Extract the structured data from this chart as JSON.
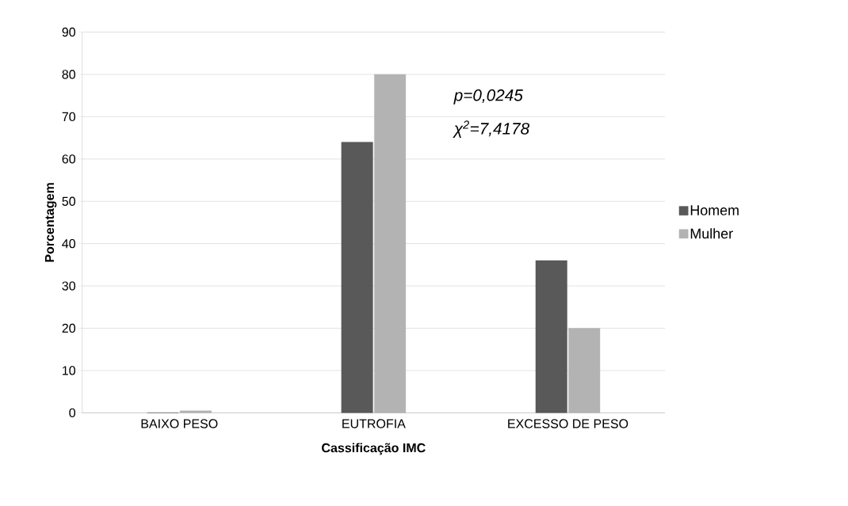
{
  "chart_data": {
    "type": "bar",
    "categories": [
      "BAIXO PESO",
      "EUTROFIA",
      "EXCESSO DE PESO"
    ],
    "series": [
      {
        "name": "Homem",
        "color": "#595959",
        "values": [
          0,
          64,
          36
        ]
      },
      {
        "name": "Mulher",
        "color": "#b3b3b3",
        "values": [
          0.5,
          80,
          20
        ]
      }
    ],
    "xlabel": "Cassificação IMC",
    "ylabel": "Porcentagem",
    "ylim": [
      0,
      90
    ],
    "yticks": [
      0,
      10,
      20,
      30,
      40,
      50,
      60,
      70,
      80,
      90
    ],
    "grid": "y",
    "legend": "right",
    "annotations": [
      "p=0,0245",
      "χ$^{2}$=7,4178"
    ]
  }
}
